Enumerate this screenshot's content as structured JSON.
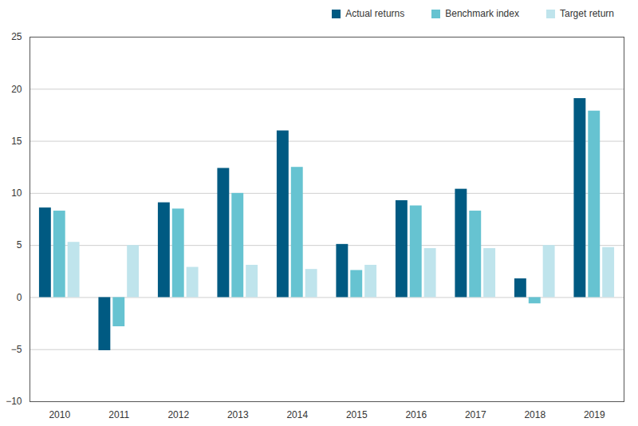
{
  "chart_data": {
    "type": "bar",
    "categories": [
      "2010",
      "2011",
      "2012",
      "2013",
      "2014",
      "2015",
      "2016",
      "2017",
      "2018",
      "2019"
    ],
    "series": [
      {
        "name": "Actual returns",
        "color": "#005a82",
        "values": [
          8.6,
          -5.1,
          9.1,
          12.4,
          16.0,
          5.1,
          9.3,
          10.4,
          1.8,
          19.1
        ]
      },
      {
        "name": "Benchmark index",
        "color": "#66c3d1",
        "values": [
          8.3,
          -2.8,
          8.5,
          10.0,
          12.5,
          2.6,
          8.8,
          8.3,
          -0.6,
          17.9
        ]
      },
      {
        "name": "Target return",
        "color": "#bfe4ec",
        "values": [
          5.3,
          5.0,
          2.9,
          3.1,
          2.7,
          3.1,
          4.7,
          4.7,
          5.0,
          4.8
        ]
      }
    ],
    "ylim": [
      -10,
      25
    ],
    "yticks": [
      -10,
      -5,
      0,
      5,
      10,
      15,
      20,
      25
    ],
    "grid": true,
    "legend": "top-right"
  }
}
